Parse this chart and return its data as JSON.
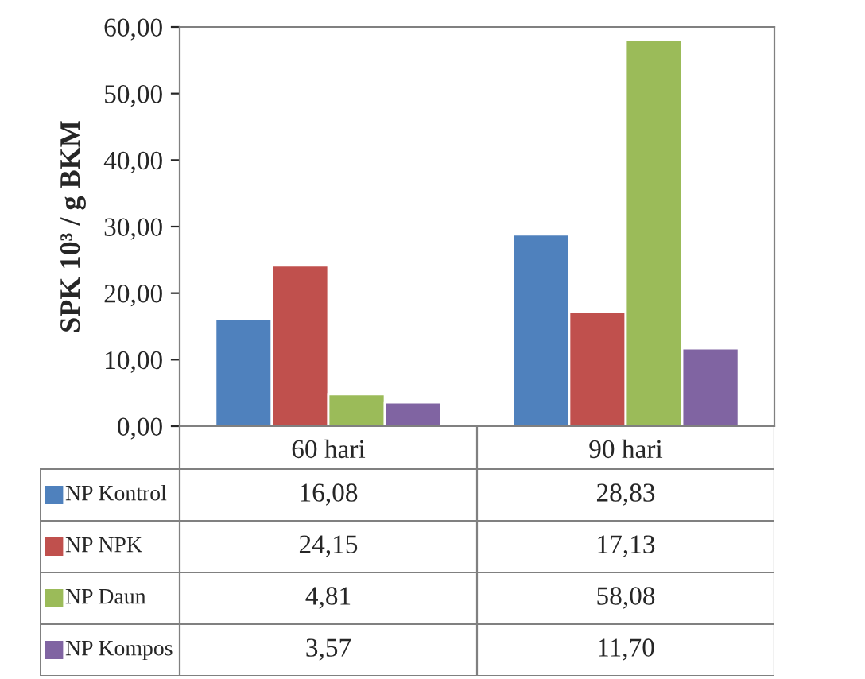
{
  "chart_data": {
    "type": "bar",
    "ylabel": "SPK 10³ / g BKM",
    "categories": [
      "60 hari",
      "90 hari"
    ],
    "series": [
      {
        "name": "NP Kontrol",
        "color": "#4f81bd",
        "values": [
          16.08,
          28.83
        ],
        "value_labels": [
          "16,08",
          "28,83"
        ]
      },
      {
        "name": "NP NPK",
        "color": "#c0504d",
        "values": [
          24.15,
          17.13
        ],
        "value_labels": [
          "24,15",
          "17,13"
        ]
      },
      {
        "name": "NP Daun",
        "color": "#9bbb59",
        "values": [
          4.81,
          58.08
        ],
        "value_labels": [
          "4,81",
          "58,08"
        ]
      },
      {
        "name": "NP Kompos",
        "color": "#8064a2",
        "values": [
          3.57,
          11.7
        ],
        "value_labels": [
          "3,57",
          "11,70"
        ]
      }
    ],
    "ylim": [
      0,
      60
    ],
    "yticks": [
      {
        "value": 0,
        "label": "0,00"
      },
      {
        "value": 10,
        "label": "10,00"
      },
      {
        "value": 20,
        "label": "20,00"
      },
      {
        "value": 30,
        "label": "30,00"
      },
      {
        "value": 40,
        "label": "40,00"
      },
      {
        "value": 50,
        "label": "50,00"
      },
      {
        "value": 60,
        "label": "60,00"
      }
    ],
    "grid": false,
    "legend": "bottom"
  }
}
